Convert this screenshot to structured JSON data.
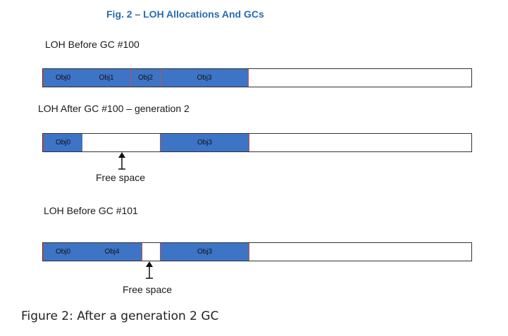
{
  "title": "Fig. 2 – LOH Allocations And GCs",
  "caption": "Figure 2: After a generation 2 GC",
  "row1": {
    "label": "LOH Before GC #100",
    "segments": [
      {
        "label": "Obj0",
        "color": "#3d74c6"
      },
      {
        "label": "Obj1",
        "color": "#3d74c6"
      },
      {
        "label": "Obj2",
        "color": "#3d74c6"
      },
      {
        "label": "Obj3",
        "color": "#3d74c6"
      }
    ]
  },
  "row2": {
    "label": "LOH After GC #100 – generation 2",
    "segments": [
      {
        "label": "Obj0",
        "color": "#3d74c6"
      },
      {
        "label": "Obj3",
        "color": "#3d74c6"
      }
    ],
    "free_label": "Free space"
  },
  "row3": {
    "label": "LOH Before GC #101",
    "segments": [
      {
        "label": "Obj0",
        "color": "#3d74c6"
      },
      {
        "label": "Obj4",
        "color": "#3d74c6"
      },
      {
        "label": "Obj3",
        "color": "#3d74c6"
      }
    ],
    "free_label": "Free space"
  }
}
